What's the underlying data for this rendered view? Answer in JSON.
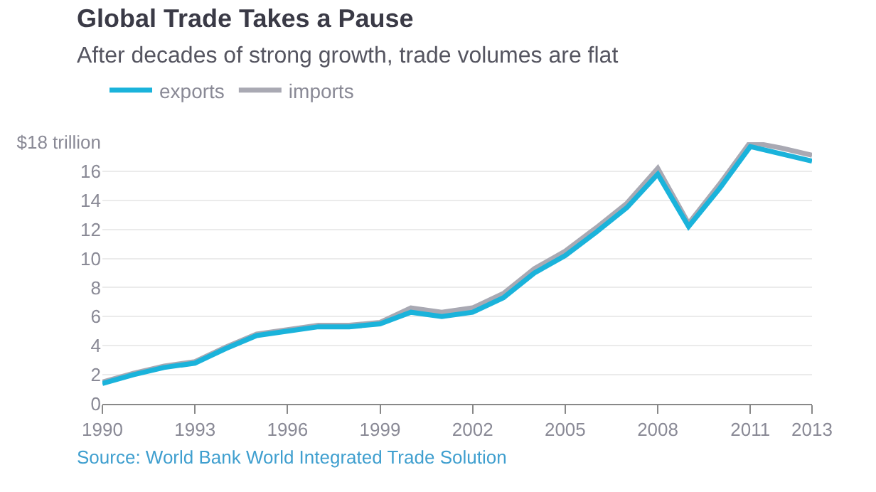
{
  "chart_data": {
    "type": "line",
    "title": "Global Trade Takes a Pause",
    "subtitle": "After decades of strong growth, trade volumes are flat",
    "x": [
      1990,
      1991,
      1992,
      1993,
      1994,
      1995,
      1996,
      1997,
      1998,
      1999,
      2000,
      2001,
      2002,
      2003,
      2004,
      2005,
      2006,
      2007,
      2008,
      2009,
      2010,
      2011,
      2012,
      2013
    ],
    "series": [
      {
        "name": "exports",
        "color": "#1ab3db",
        "values": [
          1.4,
          2.0,
          2.5,
          2.8,
          3.8,
          4.7,
          5.0,
          5.3,
          5.3,
          5.5,
          6.3,
          6.0,
          6.3,
          7.3,
          9.0,
          10.2,
          11.8,
          13.5,
          15.8,
          12.2,
          14.8,
          17.7,
          17.2,
          16.7
        ]
      },
      {
        "name": "imports",
        "color": "#a9a9b3",
        "values": [
          1.5,
          2.1,
          2.6,
          2.9,
          3.9,
          4.8,
          5.1,
          5.4,
          5.4,
          5.6,
          6.6,
          6.3,
          6.6,
          7.6,
          9.3,
          10.5,
          12.1,
          13.8,
          16.2,
          12.4,
          15.1,
          18.0,
          17.6,
          17.1
        ]
      }
    ],
    "xlim": [
      1990,
      2013
    ],
    "xticks": [
      1990,
      1993,
      1996,
      1999,
      2002,
      2005,
      2008,
      2011,
      2013
    ],
    "ylim": [
      0,
      18
    ],
    "yticks": [
      0,
      2,
      4,
      6,
      8,
      10,
      12,
      14,
      16,
      {
        "value": 18,
        "label": "$18 trillion"
      }
    ],
    "grid": "y",
    "legend": "top left",
    "marker": "none",
    "line_style": "solid",
    "annotations": [
      "Source: World Bank World Integrated Trade Solution"
    ]
  }
}
